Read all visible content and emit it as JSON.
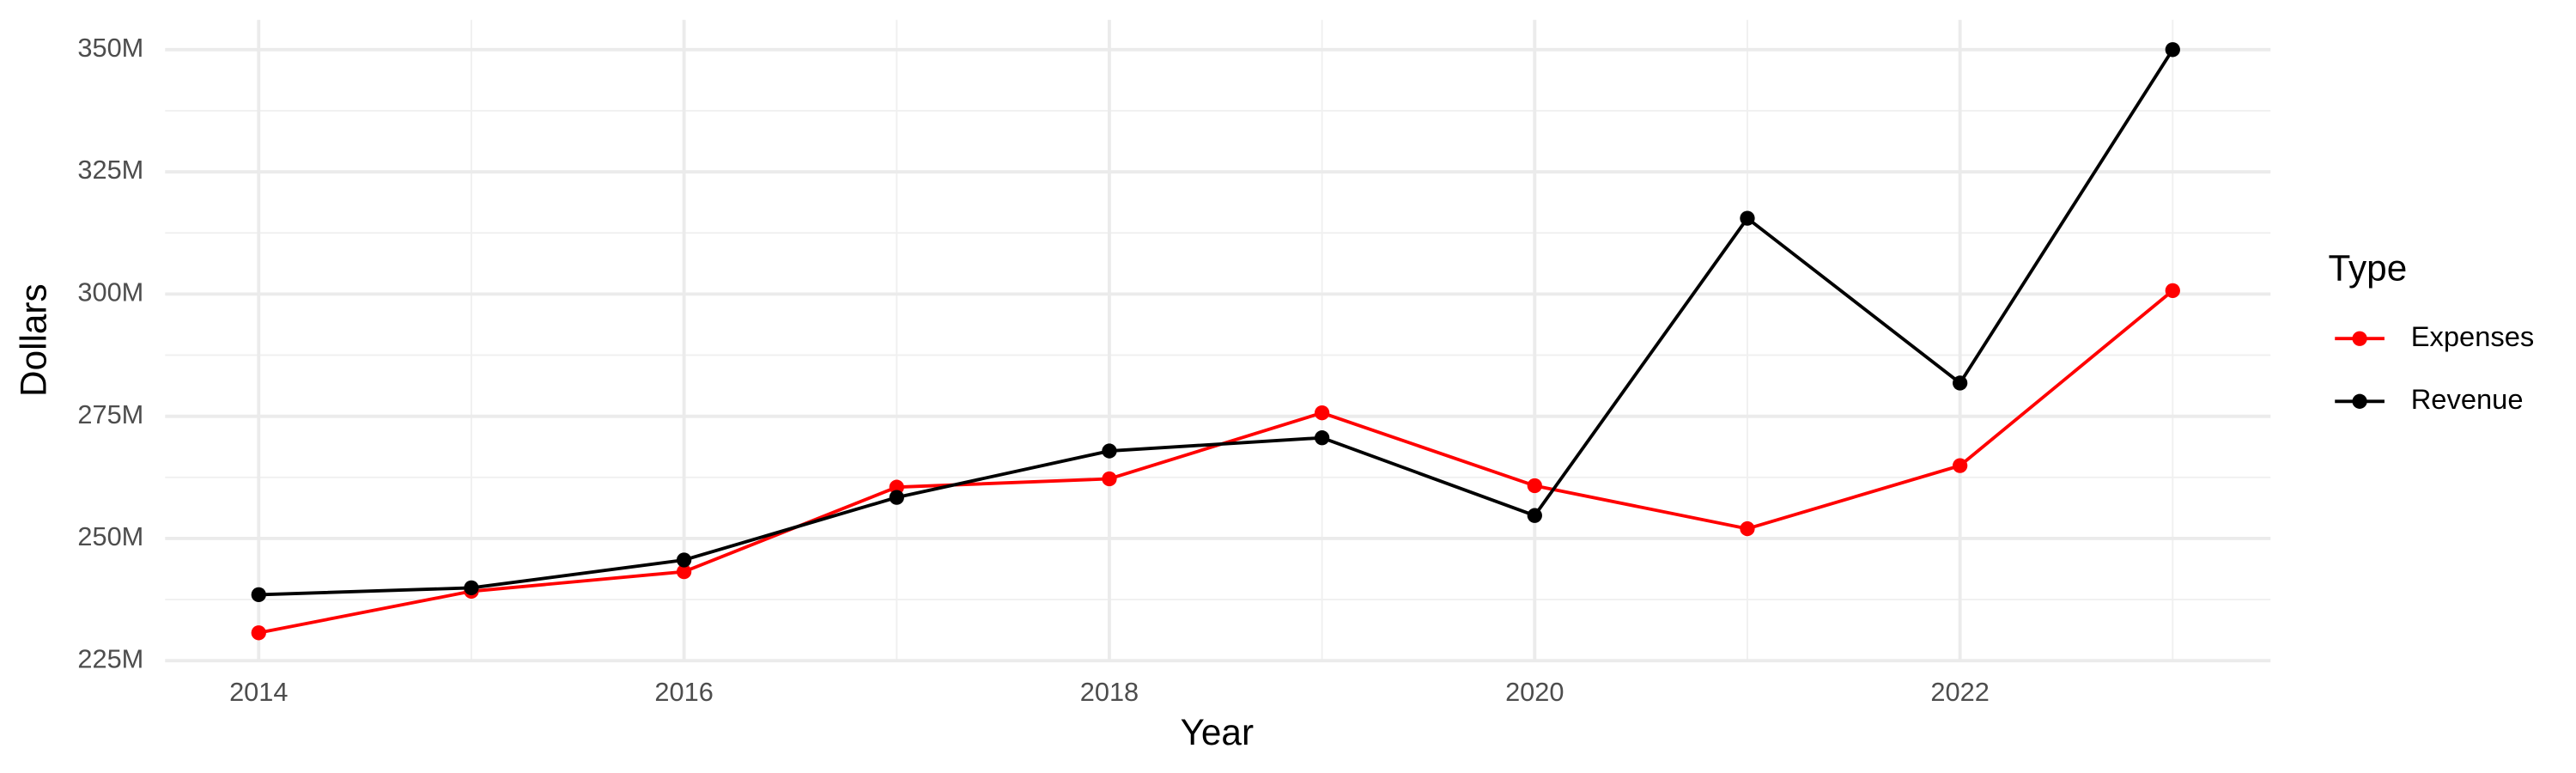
{
  "chart_data": {
    "type": "line",
    "x_label": "Year",
    "y_label": "Dollars",
    "legend_title": "Type",
    "legend_position": "right",
    "grid": true,
    "x": [
      2014,
      2015,
      2016,
      2017,
      2018,
      2019,
      2020,
      2021,
      2022,
      2023
    ],
    "series": [
      {
        "name": "Expenses",
        "color": "#ff0000",
        "values": [
          230700000,
          239200000,
          243200000,
          260500000,
          262200000,
          275700000,
          260800000,
          252000000,
          264900000,
          300700000
        ]
      },
      {
        "name": "Revenue",
        "color": "#000000",
        "values": [
          238500000,
          239900000,
          245600000,
          258400000,
          267900000,
          270600000,
          254700000,
          315500000,
          281800000,
          350000000
        ]
      }
    ],
    "xlim": [
      2013.56,
      2023.46
    ],
    "xticks": [
      2014,
      2016,
      2018,
      2020,
      2022
    ],
    "minor_xticks": [
      2015,
      2017,
      2019,
      2021,
      2023
    ],
    "ylim": [
      225000000,
      356100000
    ],
    "yticks": [
      {
        "value": 225000000,
        "label": "225M"
      },
      {
        "value": 250000000,
        "label": "250M"
      },
      {
        "value": 275000000,
        "label": "275M"
      },
      {
        "value": 300000000,
        "label": "300M"
      },
      {
        "value": 325000000,
        "label": "325M"
      },
      {
        "value": 350000000,
        "label": "350M"
      }
    ],
    "minor_yticks": [
      237500000,
      262500000,
      287500000,
      312500000,
      337500000
    ]
  }
}
